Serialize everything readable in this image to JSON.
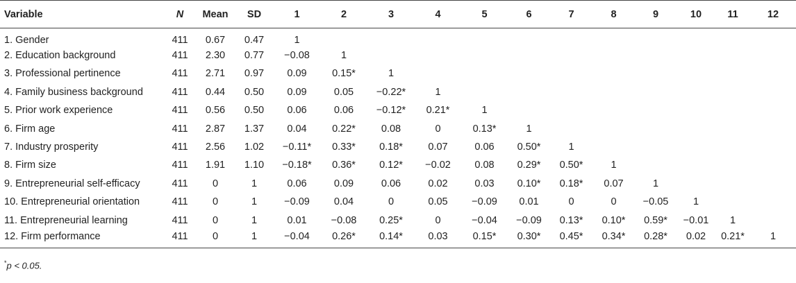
{
  "table": {
    "headers": [
      "Variable",
      "N",
      "Mean",
      "SD",
      "1",
      "2",
      "3",
      "4",
      "5",
      "6",
      "7",
      "8",
      "9",
      "10",
      "11",
      "12"
    ],
    "rows": [
      [
        "1.  Gender",
        "411",
        "0.67",
        "0.47",
        "1",
        "",
        "",
        "",
        "",
        "",
        "",
        "",
        "",
        "",
        "",
        ""
      ],
      [
        "2.  Education background",
        "411",
        "2.30",
        "0.77",
        "−0.08",
        "1",
        "",
        "",
        "",
        "",
        "",
        "",
        "",
        "",
        "",
        ""
      ],
      [
        "3.  Professional pertinence",
        "411",
        "2.71",
        "0.97",
        "0.09",
        "0.15*",
        "1",
        "",
        "",
        "",
        "",
        "",
        "",
        "",
        "",
        ""
      ],
      [
        "4.  Family business background",
        "411",
        "0.44",
        "0.50",
        "0.09",
        "0.05",
        "−0.22*",
        "1",
        "",
        "",
        "",
        "",
        "",
        "",
        "",
        ""
      ],
      [
        "5.  Prior work experience",
        "411",
        "0.56",
        "0.50",
        "0.06",
        "0.06",
        "−0.12*",
        "0.21*",
        "1",
        "",
        "",
        "",
        "",
        "",
        "",
        ""
      ],
      [
        "6.  Firm age",
        "411",
        "2.87",
        "1.37",
        "0.04",
        "0.22*",
        "0.08",
        "0",
        "0.13*",
        "1",
        "",
        "",
        "",
        "",
        "",
        ""
      ],
      [
        "7.  Industry prosperity",
        "411",
        "2.56",
        "1.02",
        "−0.11*",
        "0.33*",
        "0.18*",
        "0.07",
        "0.06",
        "0.50*",
        "1",
        "",
        "",
        "",
        "",
        ""
      ],
      [
        "8.  Firm size",
        "411",
        "1.91",
        "1.10",
        "−0.18*",
        "0.36*",
        "0.12*",
        "−0.02",
        "0.08",
        "0.29*",
        "0.50*",
        "1",
        "",
        "",
        "",
        ""
      ],
      [
        "9.  Entrepreneurial self-efficacy",
        "411",
        "0",
        "1",
        "0.06",
        "0.09",
        "0.06",
        "0.02",
        "0.03",
        "0.10*",
        "0.18*",
        "0.07",
        "1",
        "",
        "",
        ""
      ],
      [
        "10.  Entrepreneurial orientation",
        "411",
        "0",
        "1",
        "−0.09",
        "0.04",
        "0",
        "0.05",
        "−0.09",
        "0.01",
        "0",
        "0",
        "−0.05",
        "1",
        "",
        ""
      ],
      [
        "11.  Entrepreneurial learning",
        "411",
        "0",
        "1",
        "0.01",
        "−0.08",
        "0.25*",
        "0",
        "−0.04",
        "−0.09",
        "0.13*",
        "0.10*",
        "0.59*",
        "−0.01",
        "1",
        ""
      ],
      [
        "12.  Firm performance",
        "411",
        "0",
        "1",
        "−0.04",
        "0.26*",
        "0.14*",
        "0.03",
        "0.15*",
        "0.30*",
        "0.45*",
        "0.34*",
        "0.28*",
        "0.02",
        "0.21*",
        "1"
      ]
    ]
  },
  "note": {
    "star": "*",
    "text": "p < 0.05."
  }
}
